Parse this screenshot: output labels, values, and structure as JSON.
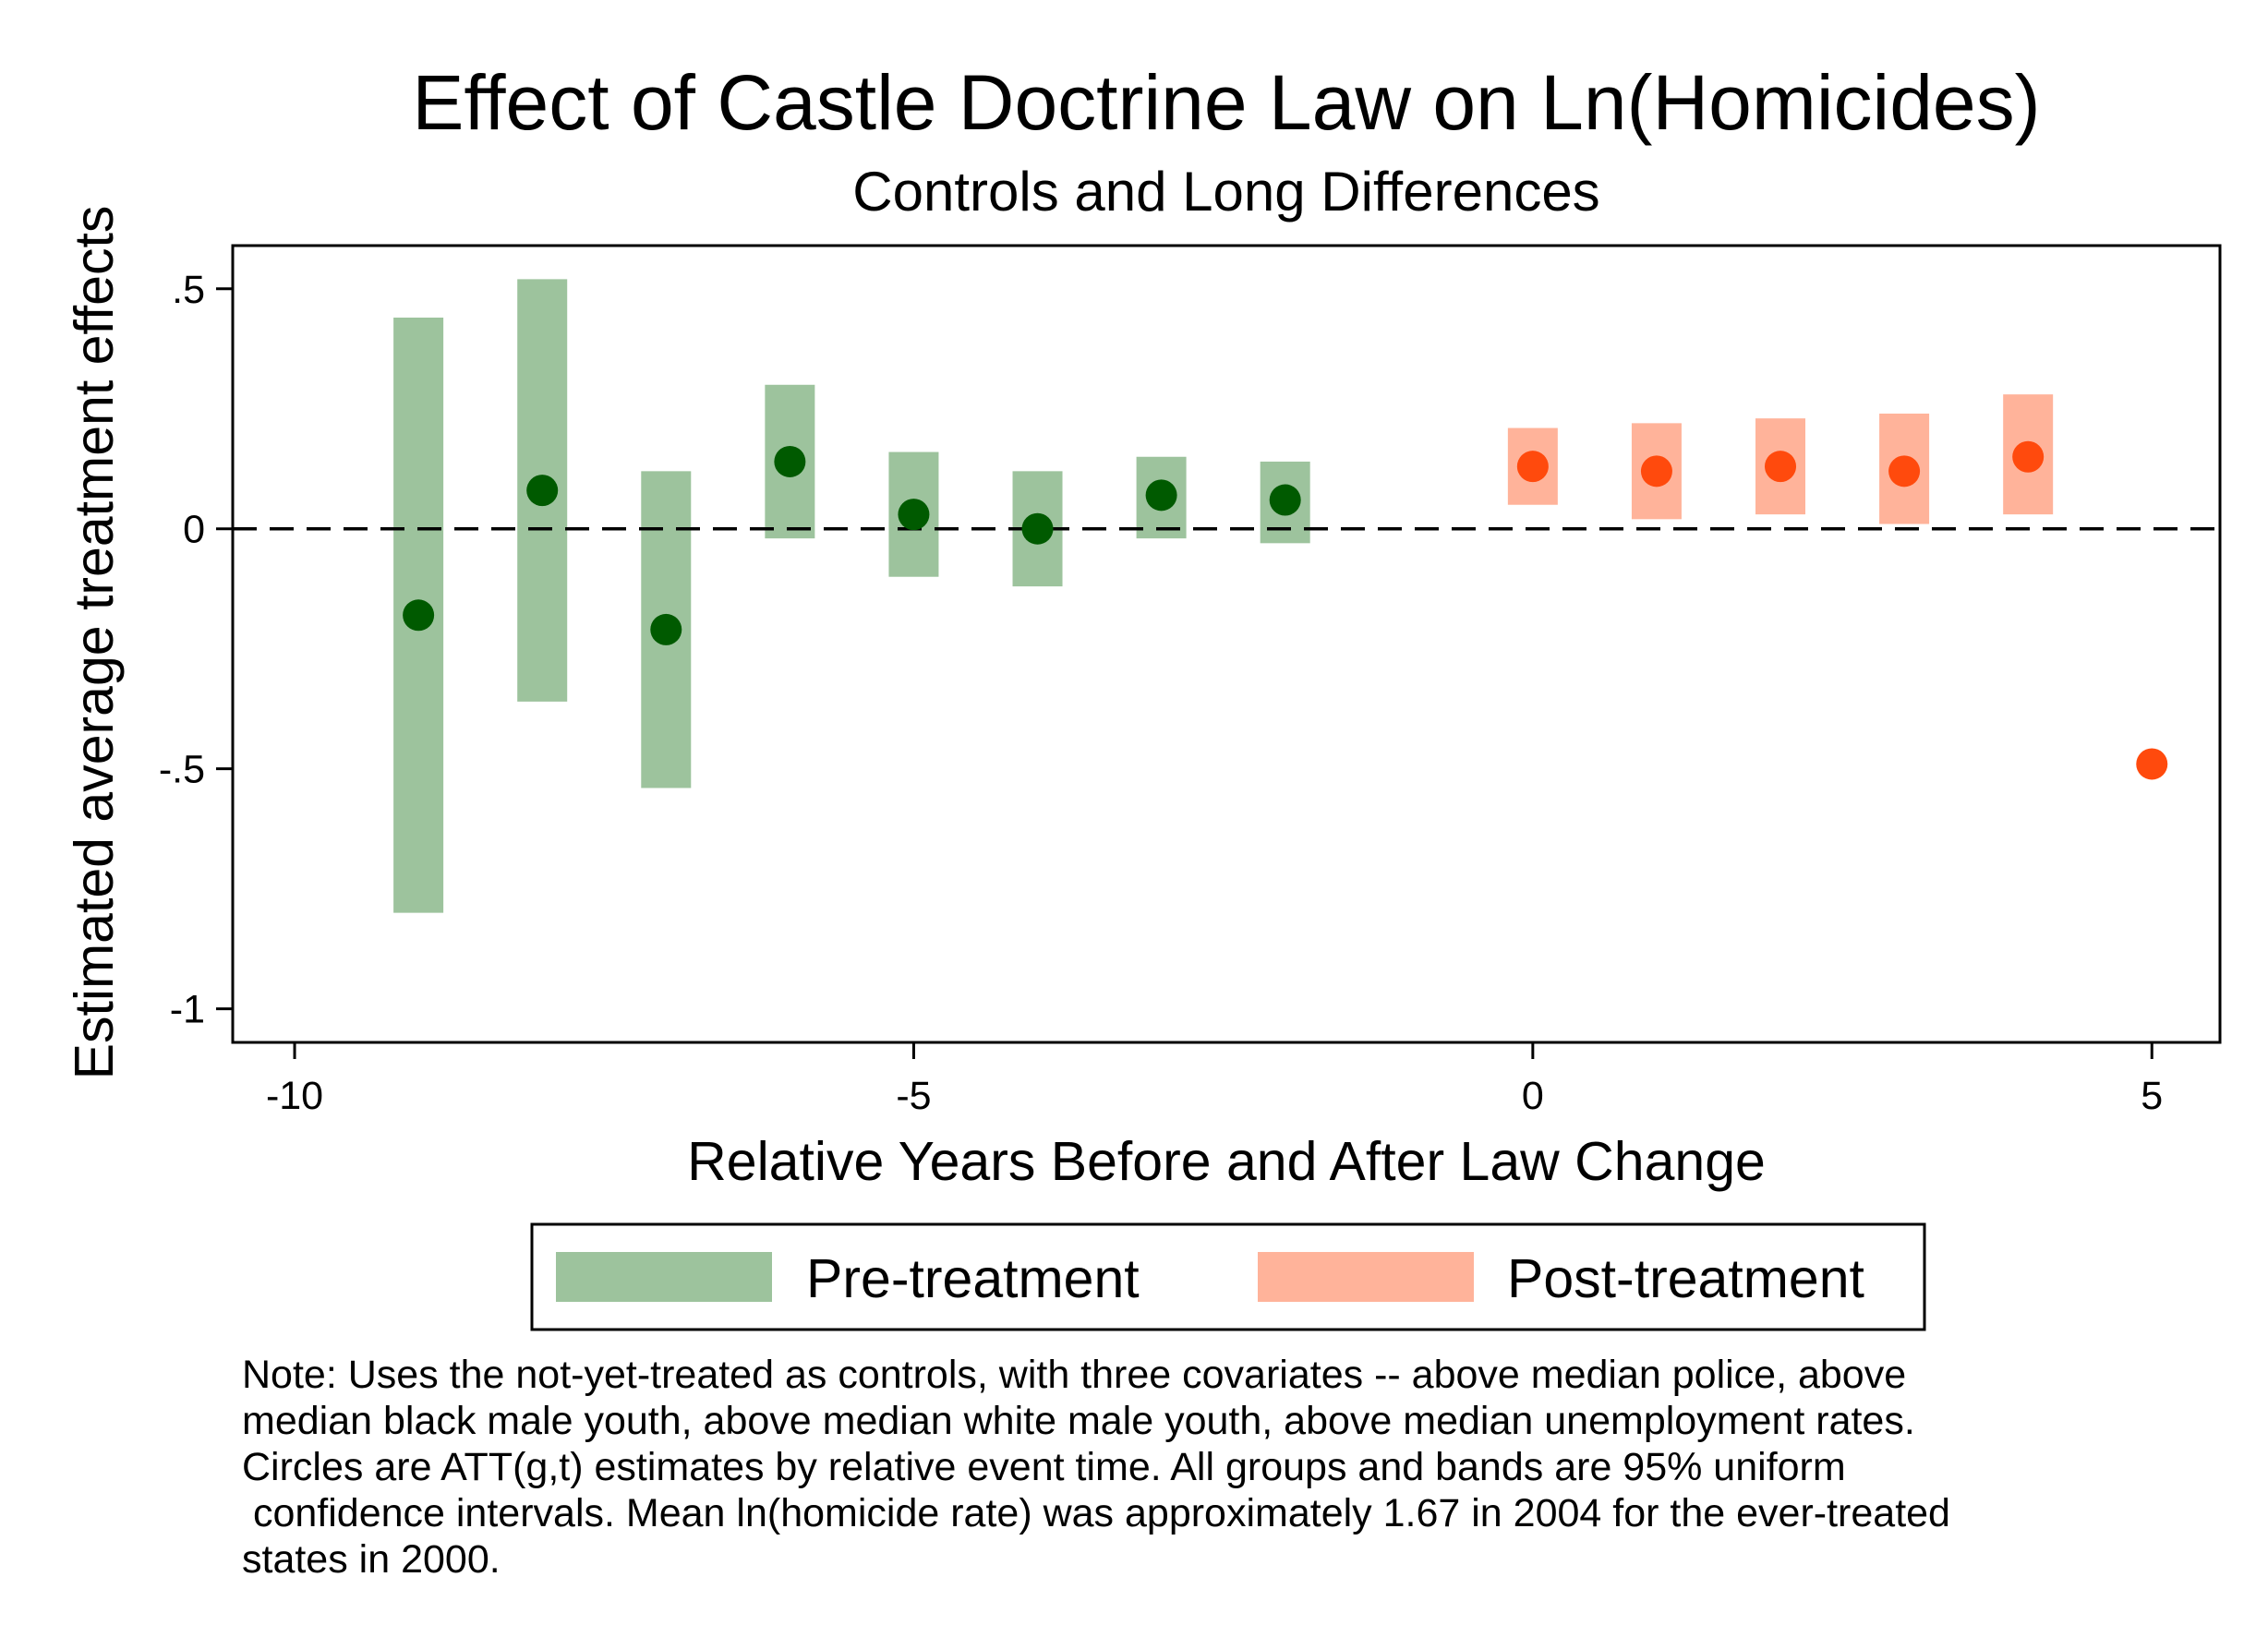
{
  "chart_data": {
    "type": "scatter",
    "title": "Effect of Castle Doctrine Law on Ln(Homicides)",
    "subtitle": "Controls and Long Differences",
    "xlabel": "Relative Years Before and After Law Change",
    "ylabel": "Estimated average treatment effects",
    "xlim": [
      -10.5,
      5.55
    ],
    "ylim": [
      -1.07,
      0.59
    ],
    "x_ticks": [
      -10,
      -5,
      0,
      5
    ],
    "x_tick_labels": [
      "-10",
      "-5",
      "0",
      "5"
    ],
    "y_ticks": [
      0.5,
      0,
      -0.5,
      -1
    ],
    "y_tick_labels": [
      ".5",
      "0",
      "-.5",
      "-1"
    ],
    "reference_line": {
      "y": 0,
      "style": "dashed"
    },
    "grid": false,
    "legend_position": "bottom",
    "series": [
      {
        "name": "Pre-treatment",
        "band_color": "#9dc39d",
        "point_color": "#005a00",
        "points": [
          {
            "x": -9,
            "y": -0.18,
            "lo": -0.8,
            "hi": 0.44
          },
          {
            "x": -8,
            "y": 0.08,
            "lo": -0.36,
            "hi": 0.52
          },
          {
            "x": -7,
            "y": -0.21,
            "lo": -0.54,
            "hi": 0.12
          },
          {
            "x": -6,
            "y": 0.14,
            "lo": -0.02,
            "hi": 0.3
          },
          {
            "x": -5,
            "y": 0.03,
            "lo": -0.1,
            "hi": 0.16
          },
          {
            "x": -4,
            "y": 0.0,
            "lo": -0.12,
            "hi": 0.12
          },
          {
            "x": -3,
            "y": 0.07,
            "lo": -0.02,
            "hi": 0.15
          },
          {
            "x": -2,
            "y": 0.06,
            "lo": -0.03,
            "hi": 0.14
          }
        ]
      },
      {
        "name": "Post-treatment",
        "band_color": "#ffb39a",
        "point_color": "#ff4a0d",
        "points": [
          {
            "x": 0,
            "y": 0.13,
            "lo": 0.05,
            "hi": 0.21
          },
          {
            "x": 1,
            "y": 0.12,
            "lo": 0.02,
            "hi": 0.22
          },
          {
            "x": 2,
            "y": 0.13,
            "lo": 0.03,
            "hi": 0.23
          },
          {
            "x": 3,
            "y": 0.12,
            "lo": 0.01,
            "hi": 0.24
          },
          {
            "x": 4,
            "y": 0.15,
            "lo": 0.03,
            "hi": 0.28
          },
          {
            "x": 5,
            "y": -0.49,
            "lo": null,
            "hi": null
          }
        ]
      }
    ]
  },
  "note_lines": [
    "Note: Uses the not-yet-treated as controls, with three covariates -- above median police, above",
    "median black male youth, above median white male youth, above median unemployment rates.",
    "Circles are ATT(g,t) estimates by relative event time. All groups and bands are 95% uniform",
    " confidence intervals. Mean ln(homicide rate) was approximately 1.67 in 2004 for the ever-treated",
    "states in 2000."
  ]
}
